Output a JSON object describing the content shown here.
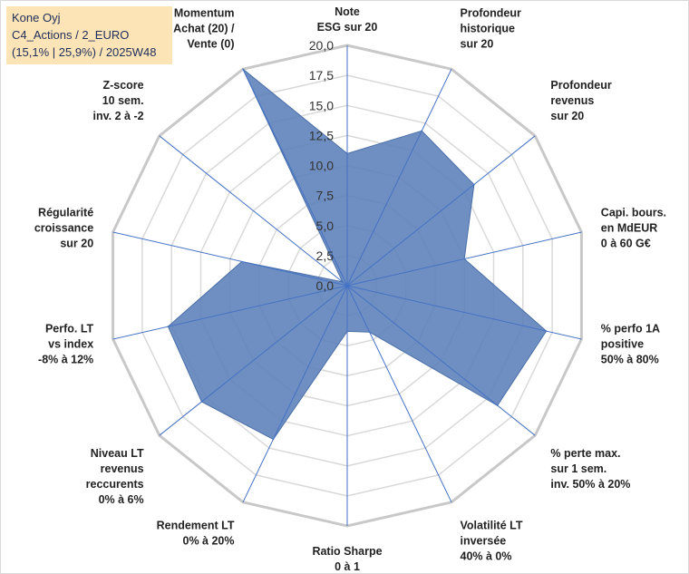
{
  "info": {
    "line1": "Kone Oyj",
    "line2": "C4_Actions / 2_EURO",
    "line3": "(15,1% | 25,9%) / 2025W48"
  },
  "chart_data": {
    "type": "radar",
    "range": [
      0,
      20
    ],
    "tick_values": [
      0,
      2.5,
      5,
      7.5,
      10,
      12.5,
      15,
      17.5,
      20
    ],
    "tick_labels": [
      "0,0",
      "2,5",
      "5,0",
      "7,5",
      "10,0",
      "12,5",
      "15,0",
      "17,5",
      "20,0"
    ],
    "series": [
      {
        "name": "Kone Oyj",
        "color": "#5b7fba"
      }
    ],
    "axes": [
      {
        "label": [
          "Note",
          "ESG sur 20"
        ],
        "value": 11
      },
      {
        "label": [
          "Profondeur",
          "historique",
          "sur 20"
        ],
        "value": 14.3
      },
      {
        "label": [
          "Profondeur",
          "revenus",
          "sur 20"
        ],
        "value": 13.5
      },
      {
        "label": [
          "Capi. bours.",
          "en MdEUR",
          "0 à 60 G€"
        ],
        "value": 10
      },
      {
        "label": [
          "% perfo 1A",
          "positive",
          "50% à 80%"
        ],
        "value": 17
      },
      {
        "label": [
          "% perte max.",
          "sur 1 sem.",
          "inv. 50% à 20%"
        ],
        "value": 16
      },
      {
        "label": [
          "Volatilité LT",
          "inversée",
          "40% à 0%"
        ],
        "value": 4.3
      },
      {
        "label": [
          "Ratio Sharpe",
          "0 à 1"
        ],
        "value": 3.8
      },
      {
        "label": [
          "Rendement LT",
          "0% à 20%"
        ],
        "value": 14.2
      },
      {
        "label": [
          "Niveau LT",
          "revenus",
          "reccurents",
          "0% à 6%"
        ],
        "value": 15.5
      },
      {
        "label": [
          "Perfo. LT",
          "vs index",
          "-8% à 12%"
        ],
        "value": 15.3
      },
      {
        "label": [
          "Régularité",
          "croissance",
          "sur 20"
        ],
        "value": 9
      },
      {
        "label": [
          "Z-score",
          "10 sem.",
          "inv. 2 à -2"
        ],
        "value": 0.5
      },
      {
        "label": [
          "Momentum",
          "Achat (20) /",
          "Vente (0)"
        ],
        "value": 20
      }
    ]
  }
}
